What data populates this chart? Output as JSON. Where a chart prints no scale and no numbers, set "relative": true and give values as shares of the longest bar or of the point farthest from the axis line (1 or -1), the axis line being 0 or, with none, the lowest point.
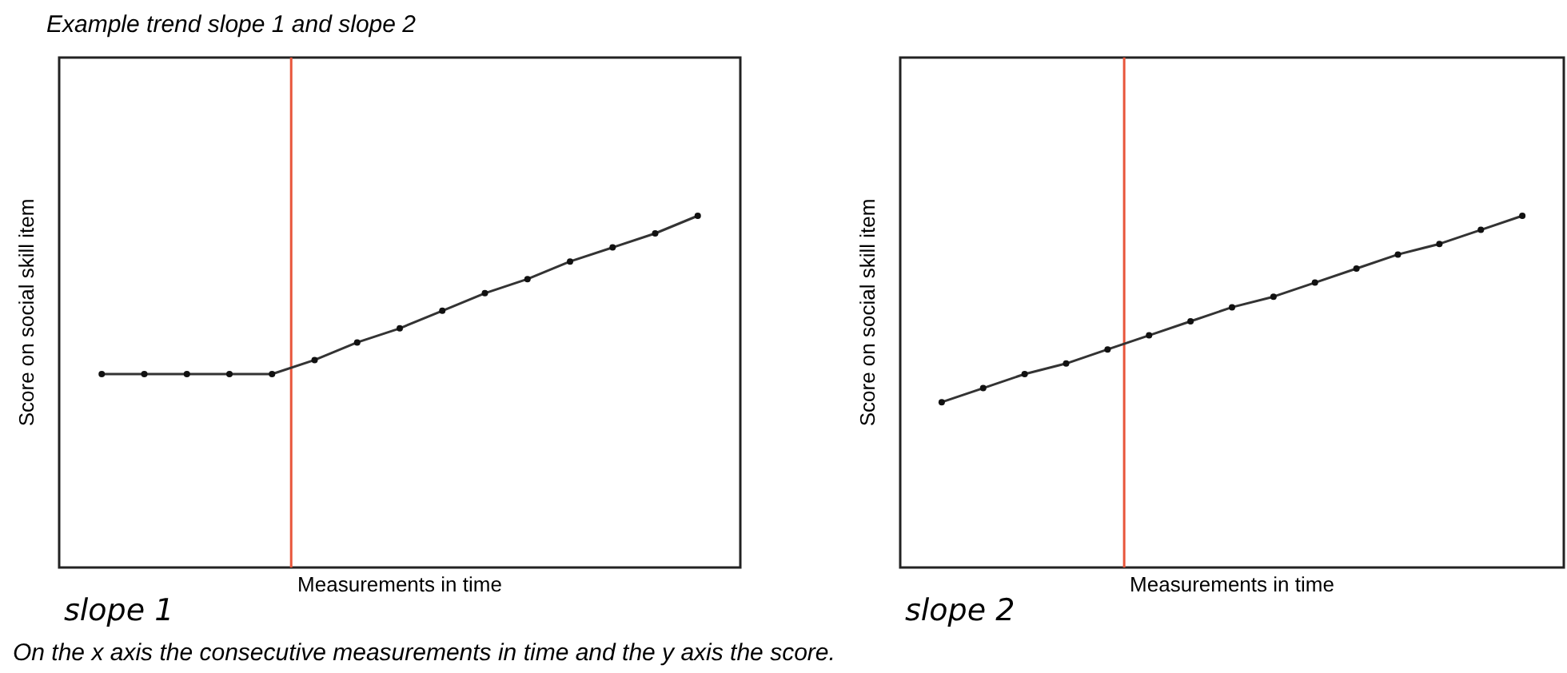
{
  "chart_data": [
    {
      "type": "line",
      "title": "Example trend slope 1 and slope 2",
      "xlabel": "Measurements in time",
      "ylabel": "Score on social skill item",
      "relative": true,
      "marker": "circle",
      "line_style": "solid",
      "categories": [
        null,
        null,
        null,
        null,
        null,
        null,
        null,
        null,
        null,
        null,
        null,
        null,
        null,
        null,
        null
      ],
      "series": [
        {
          "color": "#333333",
          "values": [
            0.55,
            0.55,
            0.55,
            0.55,
            0.55,
            0.59,
            0.64,
            0.68,
            0.73,
            0.78,
            0.82,
            0.87,
            0.91,
            0.95,
            1
          ]
        }
      ],
      "annotations": [
        "slope 1",
        "On the x axis the consecutive measurements in time and the y axis the score."
      ]
    },
    {
      "type": "line",
      "xlabel": "Measurements in time",
      "ylabel": "Score on social skill item",
      "relative": true,
      "marker": "circle",
      "line_style": "solid",
      "categories": [
        null,
        null,
        null,
        null,
        null,
        null,
        null,
        null,
        null,
        null,
        null,
        null,
        null,
        null,
        null
      ],
      "series": [
        {
          "color": "#333333",
          "values": [
            0.47,
            0.51,
            0.55,
            0.58,
            0.62,
            0.66,
            0.7,
            0.74,
            0.77,
            0.81,
            0.85,
            0.89,
            0.92,
            0.96,
            1
          ]
        }
      ],
      "annotations": [
        "slope 2"
      ]
    }
  ]
}
